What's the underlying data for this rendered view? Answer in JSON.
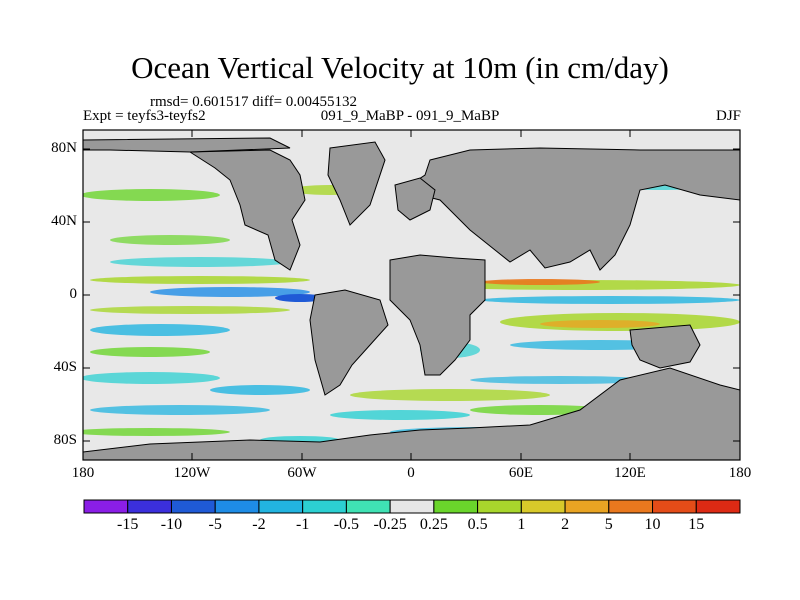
{
  "title": "Ocean Vertical Velocity at 10m (in cm/day)",
  "stats": "rmsd= 0.601517 diff= 0.00455132",
  "experiment": "Expt = teyfs3-teyfs2",
  "center_label": "091_9_MaBP - 091_9_MaBP",
  "season": "DJF",
  "lat_ticks": [
    "80N",
    "40N",
    "0",
    "40S",
    "80S"
  ],
  "lon_ticks": [
    "180",
    "120W",
    "60W",
    "0",
    "60E",
    "120E",
    "180"
  ],
  "colorbar": {
    "labels": [
      "-15",
      "-10",
      "-5",
      "-2",
      "-1",
      "-0.5",
      "-0.25",
      "0.25",
      "0.5",
      "1",
      "2",
      "5",
      "10",
      "15"
    ],
    "colors": [
      "#8a1ee6",
      "#3b2fdc",
      "#1f5ad6",
      "#1e8ce6",
      "#22b4e0",
      "#2cd0d2",
      "#3fe2b4",
      "#e6e6e6",
      "#6ad52b",
      "#a8d62c",
      "#d8c92a",
      "#e9a423",
      "#e9781e",
      "#e44c18",
      "#dd2a14"
    ]
  },
  "colors": {
    "land": "#999999",
    "ocean": "#e8e8e8"
  }
}
